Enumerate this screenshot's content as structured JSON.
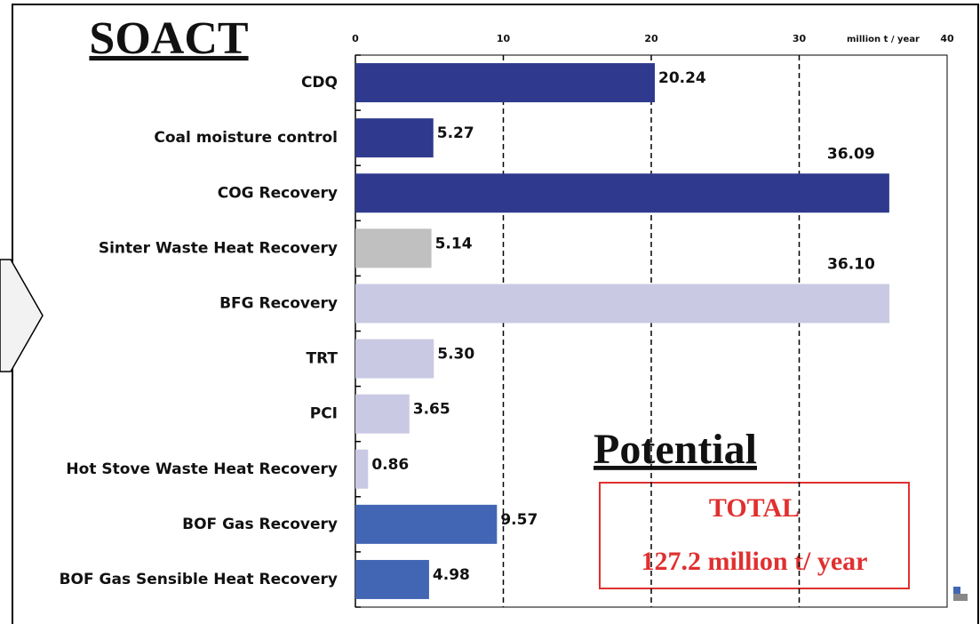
{
  "chart_data": {
    "type": "barh",
    "title": "SOACT",
    "x_unit_label": "million t / year",
    "categories": [
      "CDQ",
      "Coal moisture control",
      "COG Recovery",
      "Sinter Waste Heat Recovery",
      "BFG Recovery",
      "TRT",
      "PCI",
      "Hot Stove Waste Heat Recovery",
      "BOF Gas Recovery",
      "BOF Gas Sensible Heat Recovery"
    ],
    "values": [
      20.24,
      5.27,
      36.09,
      5.14,
      36.1,
      5.3,
      3.65,
      0.86,
      9.57,
      4.98
    ],
    "value_labels": [
      "20.24",
      "5.27",
      "36.09",
      "5.14",
      "36.10",
      "5.30",
      "3.65",
      "0.86",
      "9.57",
      "4.98"
    ],
    "colors": [
      "#2f3a8e",
      "#2f3a8e",
      "#2f3a8e",
      "#c0c0c0",
      "#c9c9e4",
      "#c9c9e4",
      "#c9c9e4",
      "#c9c9e4",
      "#4266b4",
      "#4266b4"
    ],
    "xlim": [
      0,
      40
    ],
    "xticks": [
      0,
      10,
      20,
      30,
      40
    ],
    "grid": true,
    "annotations": {
      "potential": "Potential",
      "total_title": "TOTAL",
      "total_value": "127.2 million t/ year"
    }
  }
}
